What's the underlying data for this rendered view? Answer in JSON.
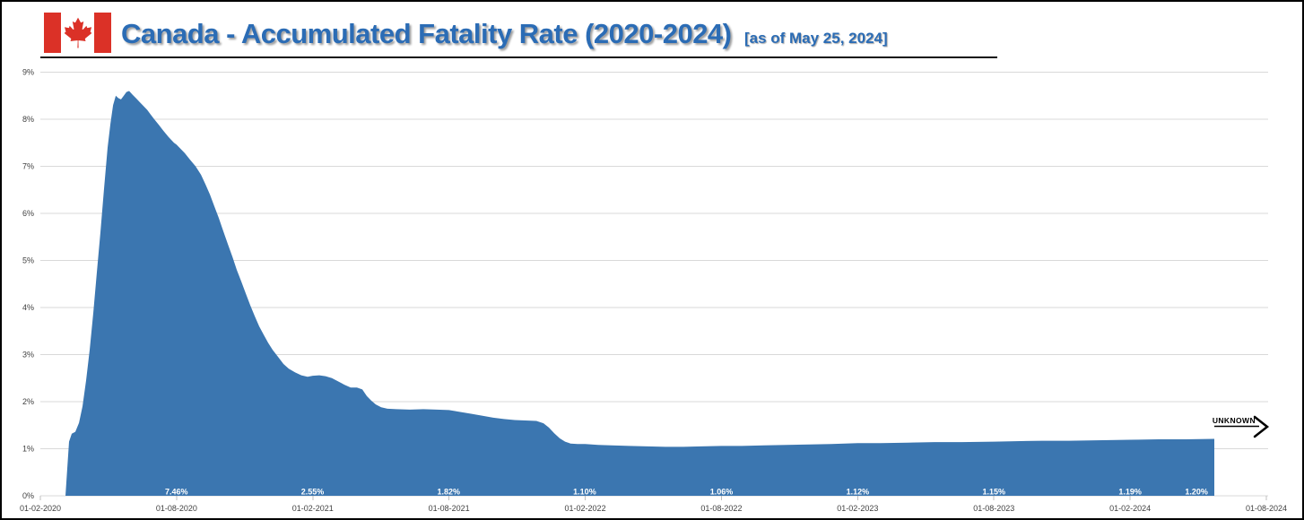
{
  "header": {
    "title": "Canada - Accumulated Fatality Rate (2020-2024)",
    "subtitle": "[as of May 25, 2024]",
    "flag_icon": "canada-flag",
    "title_color": "#2b6cb5"
  },
  "annotation": {
    "label": "UNKNOWN"
  },
  "colors": {
    "area": "#3b76b0",
    "grid": "#d9d9d9",
    "axis_text": "#3f3f3f",
    "data_label": "#ffffff",
    "flag_red": "#db3127",
    "annotation_black": "#000000"
  },
  "chart_data": {
    "type": "area",
    "title": "Canada - Accumulated Fatality Rate (2020-2024)",
    "as_of": "May 25, 2024",
    "xlabel": "",
    "ylabel": "",
    "ylim": [
      0,
      9
    ],
    "grid": true,
    "y_tick_labels": [
      "0%",
      "1%",
      "2%",
      "3%",
      "4%",
      "5%",
      "6%",
      "7%",
      "8%",
      "9%"
    ],
    "x_tick_labels": [
      "01-02-2020",
      "01-08-2020",
      "01-02-2021",
      "01-08-2021",
      "01-02-2022",
      "01-08-2022",
      "01-02-2023",
      "01-08-2023",
      "01-02-2024",
      "01-08-2024"
    ],
    "labeled_points": [
      {
        "x_label": "01-08-2020",
        "value": "7.46%",
        "f": 0.111
      },
      {
        "x_label": "01-02-2021",
        "value": "2.55%",
        "f": 0.222
      },
      {
        "x_label": "01-08-2021",
        "value": "1.82%",
        "f": 0.333
      },
      {
        "x_label": "01-02-2022",
        "value": "1.10%",
        "f": 0.444
      },
      {
        "x_label": "01-08-2022",
        "value": "1.06%",
        "f": 0.5556
      },
      {
        "x_label": "01-02-2023",
        "value": "1.12%",
        "f": 0.6667
      },
      {
        "x_label": "01-08-2023",
        "value": "1.15%",
        "f": 0.7778
      },
      {
        "x_label": "01-02-2024",
        "value": "1.19%",
        "f": 0.8889
      },
      {
        "x_label": "25-05-2024",
        "value": "1.20%",
        "f": 0.943
      }
    ],
    "curve": [
      [
        0.0205,
        0
      ],
      [
        0.0219,
        0.55
      ],
      [
        0.0234,
        1.15
      ],
      [
        0.0256,
        1.32
      ],
      [
        0.0285,
        1.36
      ],
      [
        0.0315,
        1.55
      ],
      [
        0.0344,
        1.9
      ],
      [
        0.0373,
        2.45
      ],
      [
        0.0402,
        3.1
      ],
      [
        0.0432,
        3.9
      ],
      [
        0.0461,
        4.75
      ],
      [
        0.049,
        5.6
      ],
      [
        0.0519,
        6.5
      ],
      [
        0.0549,
        7.4
      ],
      [
        0.0571,
        7.9
      ],
      [
        0.0593,
        8.3
      ],
      [
        0.0615,
        8.5
      ],
      [
        0.0636,
        8.45
      ],
      [
        0.0658,
        8.42
      ],
      [
        0.068,
        8.5
      ],
      [
        0.0702,
        8.58
      ],
      [
        0.0724,
        8.6
      ],
      [
        0.0753,
        8.52
      ],
      [
        0.0783,
        8.44
      ],
      [
        0.0812,
        8.36
      ],
      [
        0.0841,
        8.28
      ],
      [
        0.0871,
        8.2
      ],
      [
        0.09,
        8.1
      ],
      [
        0.0929,
        8.0
      ],
      [
        0.0966,
        7.88
      ],
      [
        0.1002,
        7.76
      ],
      [
        0.1046,
        7.62
      ],
      [
        0.109,
        7.5
      ],
      [
        0.1111,
        7.46
      ],
      [
        0.1178,
        7.28
      ],
      [
        0.1222,
        7.14
      ],
      [
        0.1266,
        7.0
      ],
      [
        0.131,
        6.82
      ],
      [
        0.1346,
        6.62
      ],
      [
        0.1383,
        6.4
      ],
      [
        0.1419,
        6.15
      ],
      [
        0.1456,
        5.9
      ],
      [
        0.1492,
        5.62
      ],
      [
        0.1529,
        5.35
      ],
      [
        0.1566,
        5.08
      ],
      [
        0.1602,
        4.8
      ],
      [
        0.1639,
        4.55
      ],
      [
        0.1675,
        4.3
      ],
      [
        0.1712,
        4.05
      ],
      [
        0.1748,
        3.82
      ],
      [
        0.1785,
        3.6
      ],
      [
        0.1822,
        3.42
      ],
      [
        0.1858,
        3.25
      ],
      [
        0.1895,
        3.1
      ],
      [
        0.1939,
        2.95
      ],
      [
        0.1983,
        2.8
      ],
      [
        0.2026,
        2.7
      ],
      [
        0.2078,
        2.62
      ],
      [
        0.2129,
        2.56
      ],
      [
        0.218,
        2.53
      ],
      [
        0.2222,
        2.55
      ],
      [
        0.2275,
        2.56
      ],
      [
        0.2326,
        2.54
      ],
      [
        0.2378,
        2.5
      ],
      [
        0.2429,
        2.43
      ],
      [
        0.248,
        2.36
      ],
      [
        0.2531,
        2.3
      ],
      [
        0.2582,
        2.3
      ],
      [
        0.2626,
        2.26
      ],
      [
        0.2663,
        2.12
      ],
      [
        0.2699,
        2.02
      ],
      [
        0.2736,
        1.94
      ],
      [
        0.278,
        1.88
      ],
      [
        0.2831,
        1.85
      ],
      [
        0.2904,
        1.84
      ],
      [
        0.3014,
        1.83
      ],
      [
        0.3124,
        1.84
      ],
      [
        0.3233,
        1.83
      ],
      [
        0.3333,
        1.82
      ],
      [
        0.3431,
        1.78
      ],
      [
        0.3519,
        1.74
      ],
      [
        0.3607,
        1.7
      ],
      [
        0.3694,
        1.66
      ],
      [
        0.3782,
        1.63
      ],
      [
        0.387,
        1.61
      ],
      [
        0.3958,
        1.6
      ],
      [
        0.4046,
        1.59
      ],
      [
        0.4104,
        1.54
      ],
      [
        0.4148,
        1.45
      ],
      [
        0.4192,
        1.33
      ],
      [
        0.4236,
        1.22
      ],
      [
        0.428,
        1.15
      ],
      [
        0.4324,
        1.11
      ],
      [
        0.4382,
        1.1
      ],
      [
        0.4444,
        1.1
      ],
      [
        0.455,
        1.08
      ],
      [
        0.466,
        1.07
      ],
      [
        0.4806,
        1.06
      ],
      [
        0.4952,
        1.05
      ],
      [
        0.5099,
        1.04
      ],
      [
        0.5245,
        1.04
      ],
      [
        0.5391,
        1.05
      ],
      [
        0.5556,
        1.06
      ],
      [
        0.5721,
        1.06
      ],
      [
        0.5904,
        1.07
      ],
      [
        0.6087,
        1.08
      ],
      [
        0.627,
        1.09
      ],
      [
        0.6452,
        1.1
      ],
      [
        0.6667,
        1.12
      ],
      [
        0.6854,
        1.12
      ],
      [
        0.7074,
        1.13
      ],
      [
        0.7293,
        1.14
      ],
      [
        0.7513,
        1.14
      ],
      [
        0.7778,
        1.15
      ],
      [
        0.7952,
        1.16
      ],
      [
        0.8171,
        1.17
      ],
      [
        0.8391,
        1.17
      ],
      [
        0.861,
        1.18
      ],
      [
        0.8889,
        1.19
      ],
      [
        0.9122,
        1.2
      ],
      [
        0.9342,
        1.2
      ],
      [
        0.9576,
        1.21
      ]
    ],
    "legend": null,
    "annotations": [
      {
        "text": "UNKNOWN",
        "position": "right-of-last-point",
        "style": "underlined-text-with-right-arrow"
      }
    ]
  }
}
